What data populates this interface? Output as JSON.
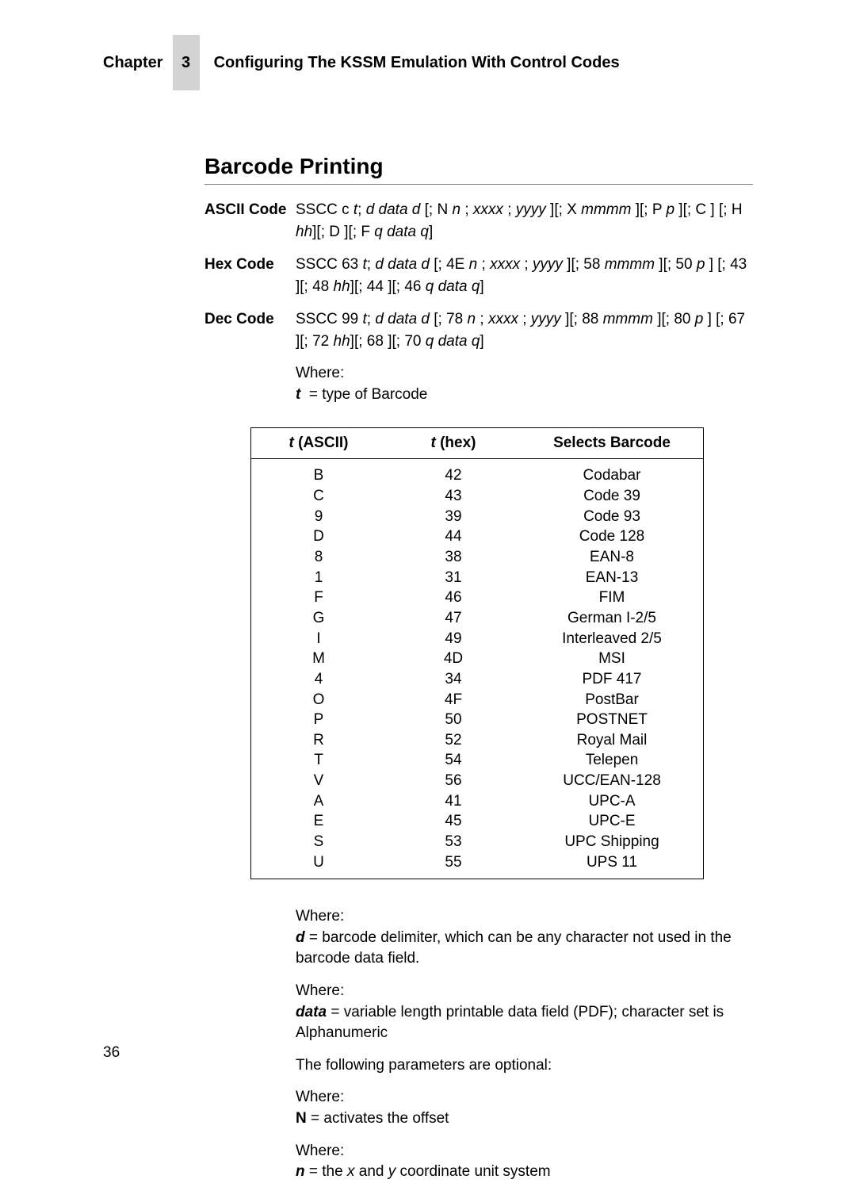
{
  "header": {
    "chapter_label": "Chapter",
    "chapter_number": "3",
    "chapter_title": "Configuring The KSSM Emulation With Control Codes"
  },
  "section_title": "Barcode Printing",
  "codes": {
    "ascii": {
      "label": "ASCII Code",
      "value_html": "SSCC c <span class='it'>t</span>; <span class='it'>d data d</span> [; N <span class='it'>n</span> ; <span class='it'>xxxx</span> ; <span class='it'>yyyy</span> ][; X <span class='it'>mmmm</span> ][; P <span class='it'>p</span> ][; C ] [; H <span class='it'>hh</span>][; D ][; F <span class='it'>q data q</span>]"
    },
    "hex": {
      "label": "Hex Code",
      "value_html": "SSCC 63 <span class='it'>t</span>; <span class='it'>d data d</span> [; 4E <span class='it'>n</span> ; <span class='it'>xxxx</span> ; <span class='it'>yyyy</span> ][; 58 <span class='it'>mmmm</span> ][; 50 <span class='it'>p</span> ] [; 43 ][; 48 <span class='it'>hh</span>][; 44 ][; 46 <span class='it'>q data q</span>]"
    },
    "dec": {
      "label": "Dec Code",
      "value_html": "SSCC 99 <span class='it'>t</span>; <span class='it'>d data d</span> [; 78 <span class='it'>n</span> ; <span class='it'>xxxx</span> ; <span class='it'>yyyy</span> ][; 88 <span class='it'>mmmm</span> ][; 80 <span class='it'>p</span> ] [; 67 ][; 72 <span class='it'>hh</span>][; 68 ][; 70 <span class='it'>q data q</span>]"
    }
  },
  "where_top_html": "Where:<br><span class='bi'>t</span>&nbsp; = type of Barcode",
  "table": {
    "headers": {
      "col1_html": "<span class='it'>t</span> (ASCII)",
      "col2_html": "<span class='it'>t</span> (hex)",
      "col3": "Selects Barcode"
    },
    "rows": [
      {
        "a": "B",
        "h": "42",
        "s": "Codabar"
      },
      {
        "a": "C",
        "h": "43",
        "s": "Code 39"
      },
      {
        "a": "9",
        "h": "39",
        "s": "Code 93"
      },
      {
        "a": "D",
        "h": "44",
        "s": "Code 128"
      },
      {
        "a": "8",
        "h": "38",
        "s": "EAN-8"
      },
      {
        "a": "1",
        "h": "31",
        "s": "EAN-13"
      },
      {
        "a": "F",
        "h": "46",
        "s": "FIM"
      },
      {
        "a": "G",
        "h": "47",
        "s": "German I-2/5"
      },
      {
        "a": "I",
        "h": "49",
        "s": "Interleaved 2/5"
      },
      {
        "a": "M",
        "h": "4D",
        "s": "MSI"
      },
      {
        "a": "4",
        "h": "34",
        "s": "PDF 417"
      },
      {
        "a": "O",
        "h": "4F",
        "s": "PostBar"
      },
      {
        "a": "P",
        "h": "50",
        "s": "POSTNET"
      },
      {
        "a": "R",
        "h": "52",
        "s": "Royal Mail"
      },
      {
        "a": "T",
        "h": "54",
        "s": "Telepen"
      },
      {
        "a": "V",
        "h": "56",
        "s": "UCC/EAN-128"
      },
      {
        "a": "A",
        "h": "41",
        "s": "UPC-A"
      },
      {
        "a": "E",
        "h": "45",
        "s": "UPC-E"
      },
      {
        "a": "S",
        "h": "53",
        "s": "UPC Shipping"
      },
      {
        "a": "U",
        "h": "55",
        "s": "UPS 11"
      }
    ]
  },
  "notes": [
    "Where:<br><span class='bi'>d</span> = barcode delimiter, which can be any character not used in the barcode data field.",
    "Where:<br><span class='bi'>data</span> = variable length printable data field (PDF); character set is Alphanumeric",
    "The following parameters are optional:",
    "Where:<br><span class='b'>N</span> = activates the offset",
    "Where:<br><span class='bi'>n</span> = the <span class='it'>x</span> and <span class='it'>y</span> coordinate unit system"
  ],
  "page_number": "36"
}
